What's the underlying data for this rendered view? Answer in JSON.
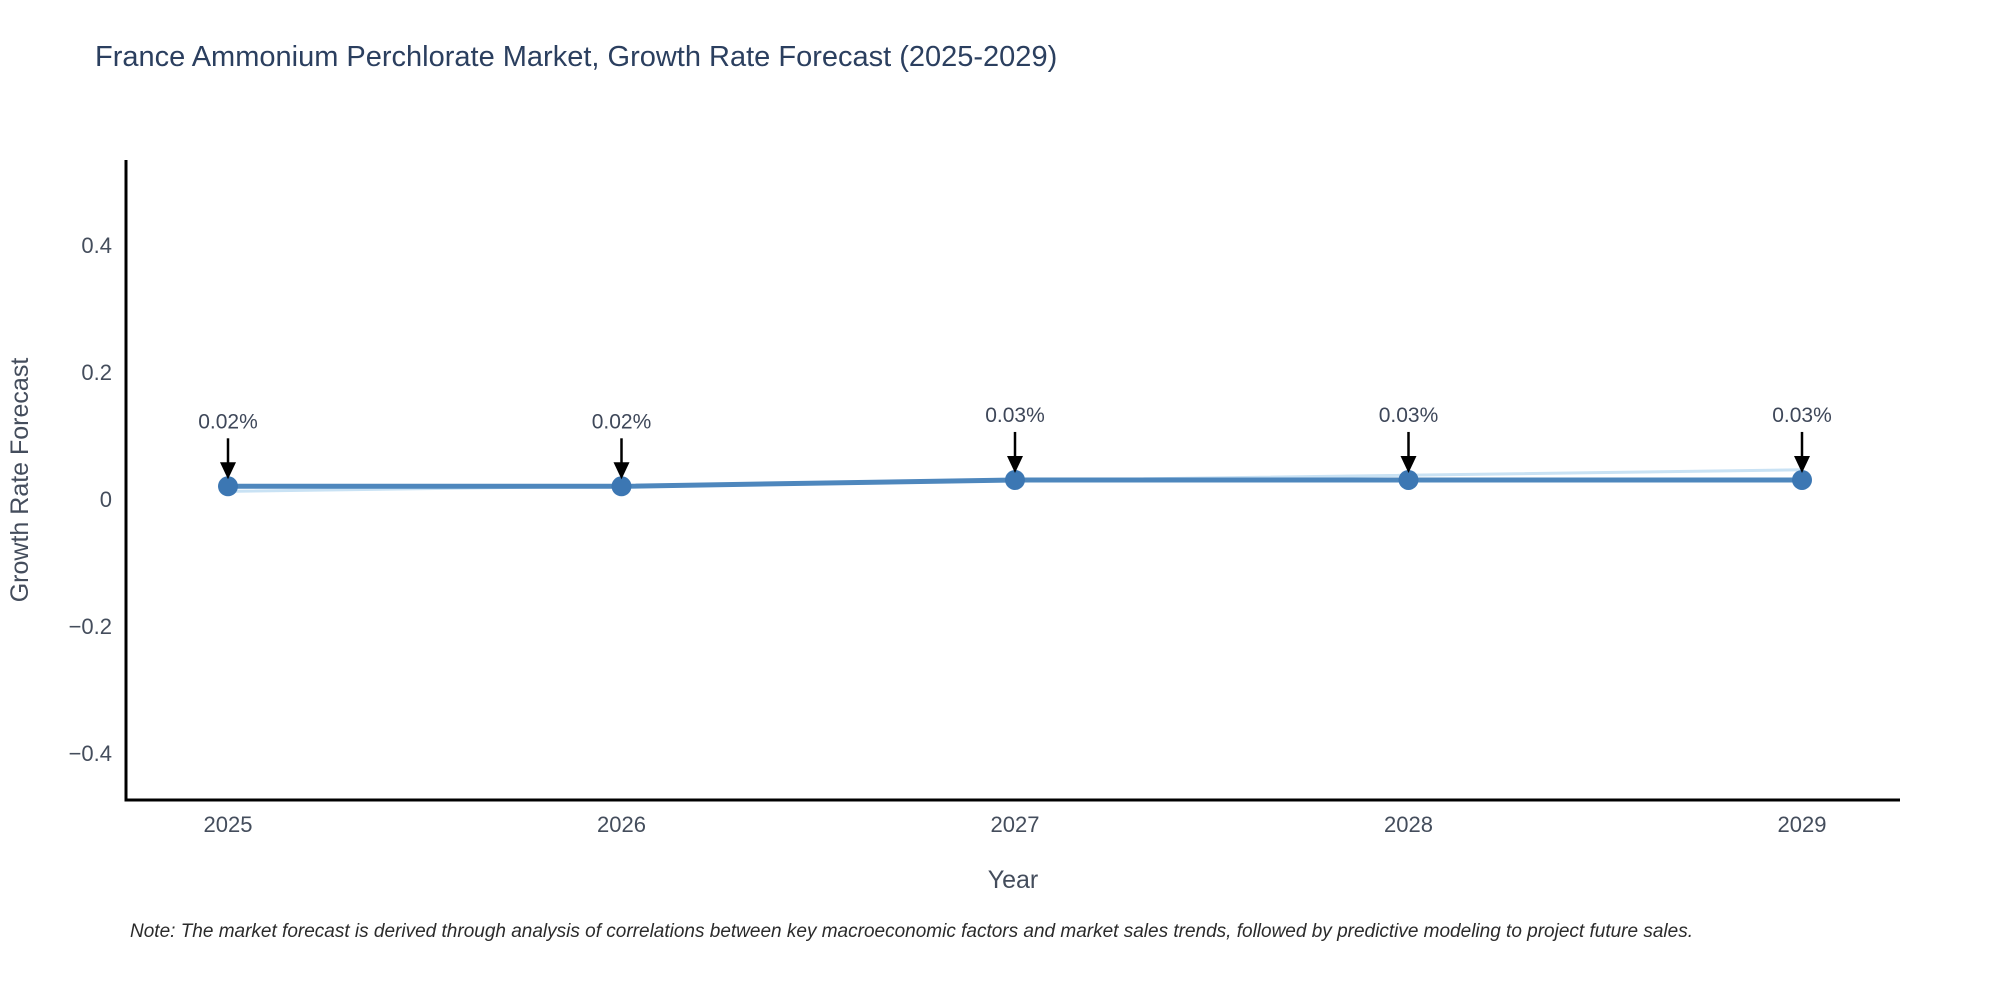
{
  "title": "France Ammonium Perchlorate Market, Growth Rate Forecast (2025-2029)",
  "note": "Note: The market forecast is derived through analysis of correlations between key macroeconomic factors and market sales trends, followed by predictive modeling to project future sales.",
  "chart_data": {
    "type": "line",
    "title": "France Ammonium Perchlorate Market, Growth Rate Forecast (2025-2029)",
    "xlabel": "Year",
    "ylabel": "Growth Rate Forecast",
    "categories": [
      "2025",
      "2026",
      "2027",
      "2028",
      "2029"
    ],
    "series": [
      {
        "name": "Growth Rate Forecast",
        "values": [
          0.02,
          0.02,
          0.03,
          0.03,
          0.03
        ],
        "point_labels": [
          "0.02%",
          "0.02%",
          "0.03%",
          "0.03%",
          "0.03%"
        ]
      }
    ],
    "trend_line": {
      "start_value": 0.012,
      "end_value": 0.046
    },
    "yticks": [
      0.4,
      0.2,
      0,
      -0.2,
      -0.4
    ],
    "ytick_labels": [
      "0.4",
      "0.2",
      "0",
      "−0.2",
      "−0.4"
    ],
    "ylim": [
      -0.48,
      0.53
    ],
    "grid": false,
    "legend_position": "none",
    "colors": {
      "line": "#4e87bd",
      "marker": "#3c77b3",
      "trend": "#c9e2f4",
      "axis": "#000000",
      "annotation_arrow": "#000000"
    }
  }
}
